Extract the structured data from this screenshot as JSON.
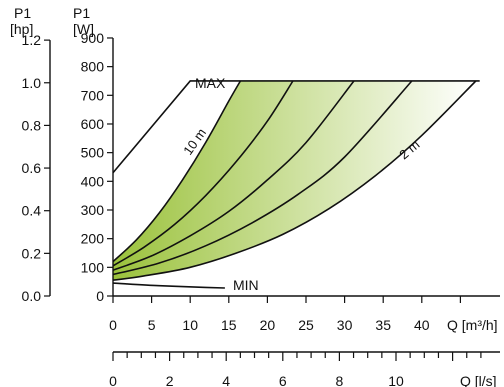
{
  "chart_data": {
    "type": "line",
    "units": {
      "hp_top": "P1",
      "hp_bottom": "[hp]",
      "w_top": "P1",
      "w_bottom": "[W]",
      "q_m3h": "Q [m³/h]",
      "q_ls": "Q [l/s]"
    },
    "axes": {
      "watts": {
        "range": [
          0,
          900
        ],
        "ticks": [
          "0",
          "100",
          "200",
          "300",
          "400",
          "500",
          "600",
          "700",
          "800",
          "900"
        ]
      },
      "hp": {
        "range": [
          0,
          1.2
        ],
        "ticks": [
          "0.0",
          "0.2",
          "0.4",
          "0.6",
          "0.8",
          "1.0",
          "1.2"
        ]
      },
      "m3h": {
        "range": [
          0,
          44
        ],
        "ticks": [
          "0",
          "5",
          "10",
          "15",
          "20",
          "25",
          "30",
          "35",
          "40"
        ]
      },
      "ls": {
        "range": [
          0,
          12.2
        ],
        "ticks": [
          "0",
          "2",
          "4",
          "6",
          "8",
          "10"
        ]
      }
    },
    "labels": {
      "max": "MAX",
      "min": "MIN",
      "top_curve": "10 m",
      "bottom_curve": "2 m"
    },
    "series": [
      {
        "x": [
          0,
          3,
          6,
          9,
          12,
          15,
          16.5
        ],
        "y": [
          120,
          195,
          290,
          405,
          535,
          680,
          750
        ]
      },
      {
        "x": [
          0,
          4,
          8,
          12,
          16,
          20,
          23.3
        ],
        "y": [
          105,
          170,
          250,
          350,
          470,
          610,
          750
        ]
      },
      {
        "x": [
          0,
          5,
          10,
          15,
          20,
          25,
          31.2
        ],
        "y": [
          90,
          140,
          210,
          295,
          405,
          535,
          750
        ]
      },
      {
        "x": [
          0,
          6,
          12,
          18,
          24,
          30,
          38.7
        ],
        "y": [
          75,
          115,
          175,
          255,
          355,
          485,
          750
        ]
      },
      {
        "x": [
          0,
          4,
          10,
          16,
          22,
          28,
          34,
          40,
          47
        ],
        "y": [
          55,
          70,
          100,
          150,
          215,
          305,
          420,
          560,
          750
        ]
      }
    ],
    "max_line": {
      "x": [
        0,
        10,
        47.5
      ],
      "y": [
        430,
        750,
        750
      ]
    },
    "min_line": {
      "x": [
        0,
        6,
        12,
        14.5
      ],
      "y": [
        45,
        36,
        30,
        28
      ]
    },
    "colors": {
      "fill_dark": "#9bc23c",
      "fill_light": "#ffffff"
    }
  }
}
